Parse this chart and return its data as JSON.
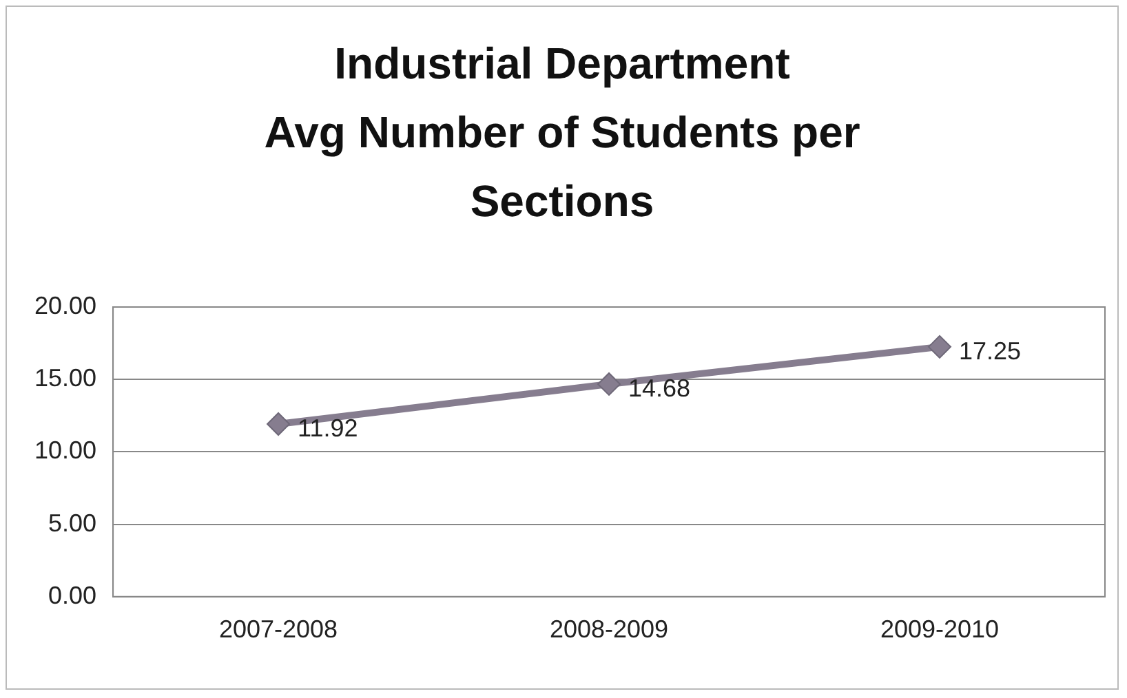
{
  "chart_data": {
    "type": "line",
    "title": "Industrial Department\nAvg Number of Students per Sections",
    "categories": [
      "2007-2008",
      "2008-2009",
      "2009-2010"
    ],
    "series": [
      {
        "color": "#867d8f",
        "values": [
          11.92,
          14.68,
          17.25
        ]
      }
    ],
    "ylim": [
      0,
      20
    ],
    "yticks": [
      {
        "value": 0,
        "label": "0.00"
      },
      {
        "value": 5,
        "label": "5.00"
      },
      {
        "value": 10,
        "label": "10.00"
      },
      {
        "value": 15,
        "label": "15.00"
      },
      {
        "value": 20,
        "label": "20.00"
      }
    ],
    "grid": "y",
    "legend": false,
    "marker": "diamond",
    "line_style": "solid",
    "data_labels": true
  }
}
